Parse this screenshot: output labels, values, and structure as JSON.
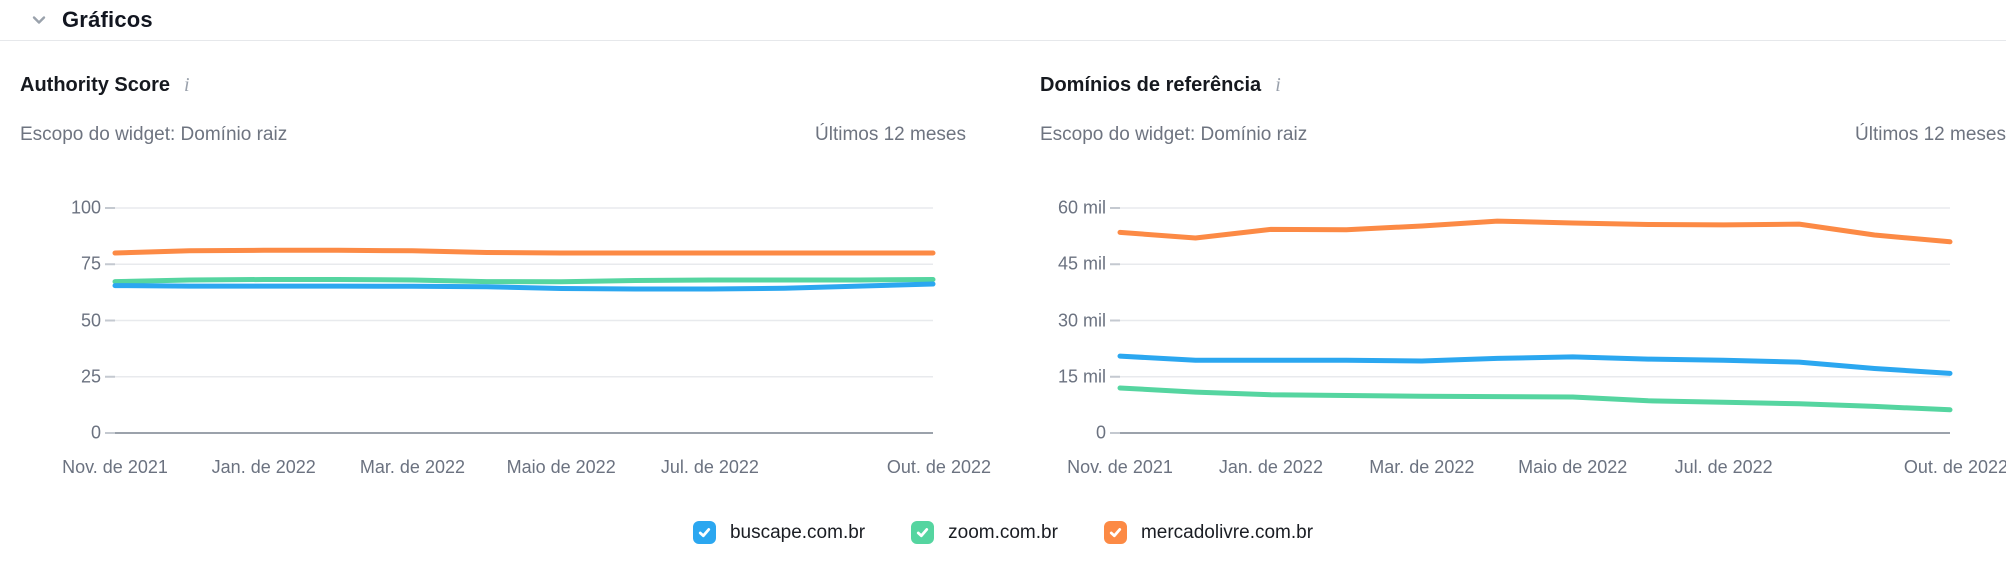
{
  "header": {
    "title": "Gráficos"
  },
  "colors": {
    "buscape": "#2ba7f0",
    "zoom": "#55d5a0",
    "mercadolivre": "#fc8a45",
    "grid": "#e8eaed",
    "zero_axis": "#9ba2ab",
    "tick_stub": "#c4c9d0"
  },
  "legend": {
    "items": [
      {
        "label": "buscape.com.br",
        "color": "#2ba7f0",
        "checked": true
      },
      {
        "label": "zoom.com.br",
        "color": "#55d5a0",
        "checked": true
      },
      {
        "label": "mercadolivre.com.br",
        "color": "#fc8a45",
        "checked": true
      }
    ]
  },
  "chart_data": [
    {
      "type": "line",
      "title": "Authority Score",
      "scope_label": "Escopo do widget: Domínio raiz",
      "period_label": "Últimos 12 meses",
      "x": [
        "nov 2021",
        "dez 2021",
        "jan 2022",
        "fev 2022",
        "mar 2022",
        "abr 2022",
        "maio 2022",
        "jun 2022",
        "jul 2022",
        "ago 2022",
        "set 2022",
        "out 2022"
      ],
      "x_tick_labels": [
        {
          "label": "Nov. de 2021",
          "pos": 0
        },
        {
          "label": "Jan. de 2022",
          "pos": 2
        },
        {
          "label": "Mar. de 2022",
          "pos": 4
        },
        {
          "label": "Maio de 2022",
          "pos": 6
        },
        {
          "label": "Jul. de 2022",
          "pos": 8
        },
        {
          "label": "Out. de 2022",
          "pos": 11
        }
      ],
      "ylim": [
        0,
        100
      ],
      "yticks": [
        {
          "label": "100",
          "value": 100
        },
        {
          "label": "75",
          "value": 75
        },
        {
          "label": "50",
          "value": 50
        },
        {
          "label": "25",
          "value": 25
        },
        {
          "label": "0",
          "value": 0
        }
      ],
      "grid": true,
      "legend_position": "bottom-center-shared",
      "series": [
        {
          "name": "buscape.com.br",
          "color": "#2ba7f0",
          "values": [
            65.5,
            65.3,
            65.3,
            65.3,
            65.2,
            65.0,
            64.2,
            64.0,
            64.0,
            64.3,
            65.3,
            66.2
          ]
        },
        {
          "name": "zoom.com.br",
          "color": "#55d5a0",
          "values": [
            67.3,
            68.0,
            68.2,
            68.2,
            68.0,
            67.3,
            67.2,
            67.8,
            68.0,
            68.0,
            68.0,
            68.2
          ]
        },
        {
          "name": "mercadolivre.com.br",
          "color": "#fc8a45",
          "values": [
            80.0,
            81.0,
            81.2,
            81.2,
            81.0,
            80.2,
            80.0,
            80.0,
            80.0,
            80.0,
            80.0,
            80.0
          ]
        }
      ]
    },
    {
      "type": "line",
      "title": "Domínios de referência",
      "scope_label": "Escopo do widget: Domínio raiz",
      "period_label": "Últimos 12 meses",
      "unit": "mil",
      "x": [
        "nov 2021",
        "dez 2021",
        "jan 2022",
        "fev 2022",
        "mar 2022",
        "abr 2022",
        "maio 2022",
        "jun 2022",
        "jul 2022",
        "ago 2022",
        "set 2022",
        "out 2022"
      ],
      "x_tick_labels": [
        {
          "label": "Nov. de 2021",
          "pos": 0
        },
        {
          "label": "Jan. de 2022",
          "pos": 2
        },
        {
          "label": "Mar. de 2022",
          "pos": 4
        },
        {
          "label": "Maio de 2022",
          "pos": 6
        },
        {
          "label": "Jul. de 2022",
          "pos": 8
        },
        {
          "label": "Out. de 2022",
          "pos": 11
        }
      ],
      "ylim": [
        0,
        60
      ],
      "yticks": [
        {
          "label": "60 mil",
          "value": 60
        },
        {
          "label": "45 mil",
          "value": 45
        },
        {
          "label": "30 mil",
          "value": 30
        },
        {
          "label": "15 mil",
          "value": 15
        },
        {
          "label": "0",
          "value": 0
        }
      ],
      "grid": true,
      "legend_position": "bottom-center-shared",
      "series": [
        {
          "name": "buscape.com.br",
          "color": "#2ba7f0",
          "values": [
            20.5,
            19.4,
            19.4,
            19.4,
            19.2,
            19.9,
            20.3,
            19.7,
            19.4,
            18.9,
            17.2,
            15.9
          ]
        },
        {
          "name": "zoom.com.br",
          "color": "#55d5a0",
          "values": [
            12.0,
            10.9,
            10.2,
            10.0,
            9.8,
            9.7,
            9.6,
            8.6,
            8.2,
            7.8,
            7.1,
            6.2
          ]
        },
        {
          "name": "mercadolivre.com.br",
          "color": "#fc8a45",
          "values": [
            53.5,
            52.0,
            54.3,
            54.2,
            55.2,
            56.5,
            56.0,
            55.6,
            55.5,
            55.7,
            52.8,
            51.0
          ]
        }
      ]
    }
  ]
}
